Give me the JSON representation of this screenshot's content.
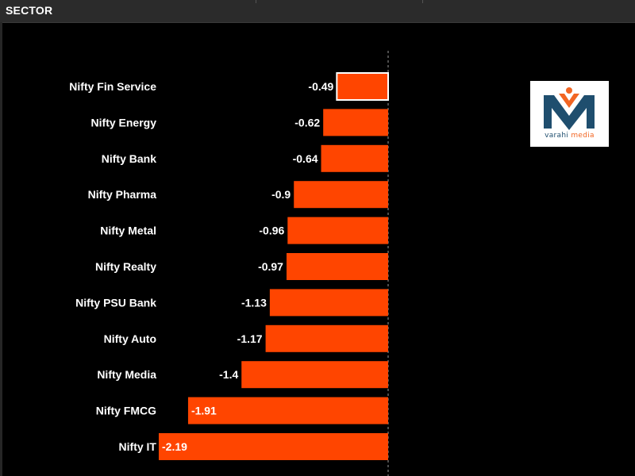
{
  "header": {
    "title": "SECTOR"
  },
  "logo": {
    "brand_part1": "varahi",
    "brand_part2": " media",
    "primary_color": "#1f4e6e",
    "accent_color": "#f26522"
  },
  "chart_data": {
    "type": "bar",
    "orientation": "horizontal",
    "title": "",
    "xlabel": "",
    "ylabel": "",
    "categories": [
      "Nifty Fin Service",
      "Nifty Energy",
      "Nifty Bank",
      "Nifty Pharma",
      "Nifty Metal",
      "Nifty Realty",
      "Nifty PSU Bank",
      "Nifty Auto",
      "Nifty Media",
      "Nifty FMCG",
      "Nifty IT"
    ],
    "values": [
      -0.49,
      -0.62,
      -0.64,
      -0.9,
      -0.96,
      -0.97,
      -1.13,
      -1.17,
      -1.4,
      -1.91,
      -2.19
    ],
    "labels": [
      "-0.49",
      "-0.62",
      "-0.64",
      "-0.9",
      "-0.96",
      "-0.97",
      "-1.13",
      "-1.17",
      "-1.4",
      "-1.91",
      "-2.19"
    ],
    "highlighted_index": 0,
    "bar_color": "#ff4500",
    "highlight_border_color": "#ffffff",
    "xlim": [
      -2.19,
      0
    ],
    "grid": false,
    "legend": "none"
  }
}
